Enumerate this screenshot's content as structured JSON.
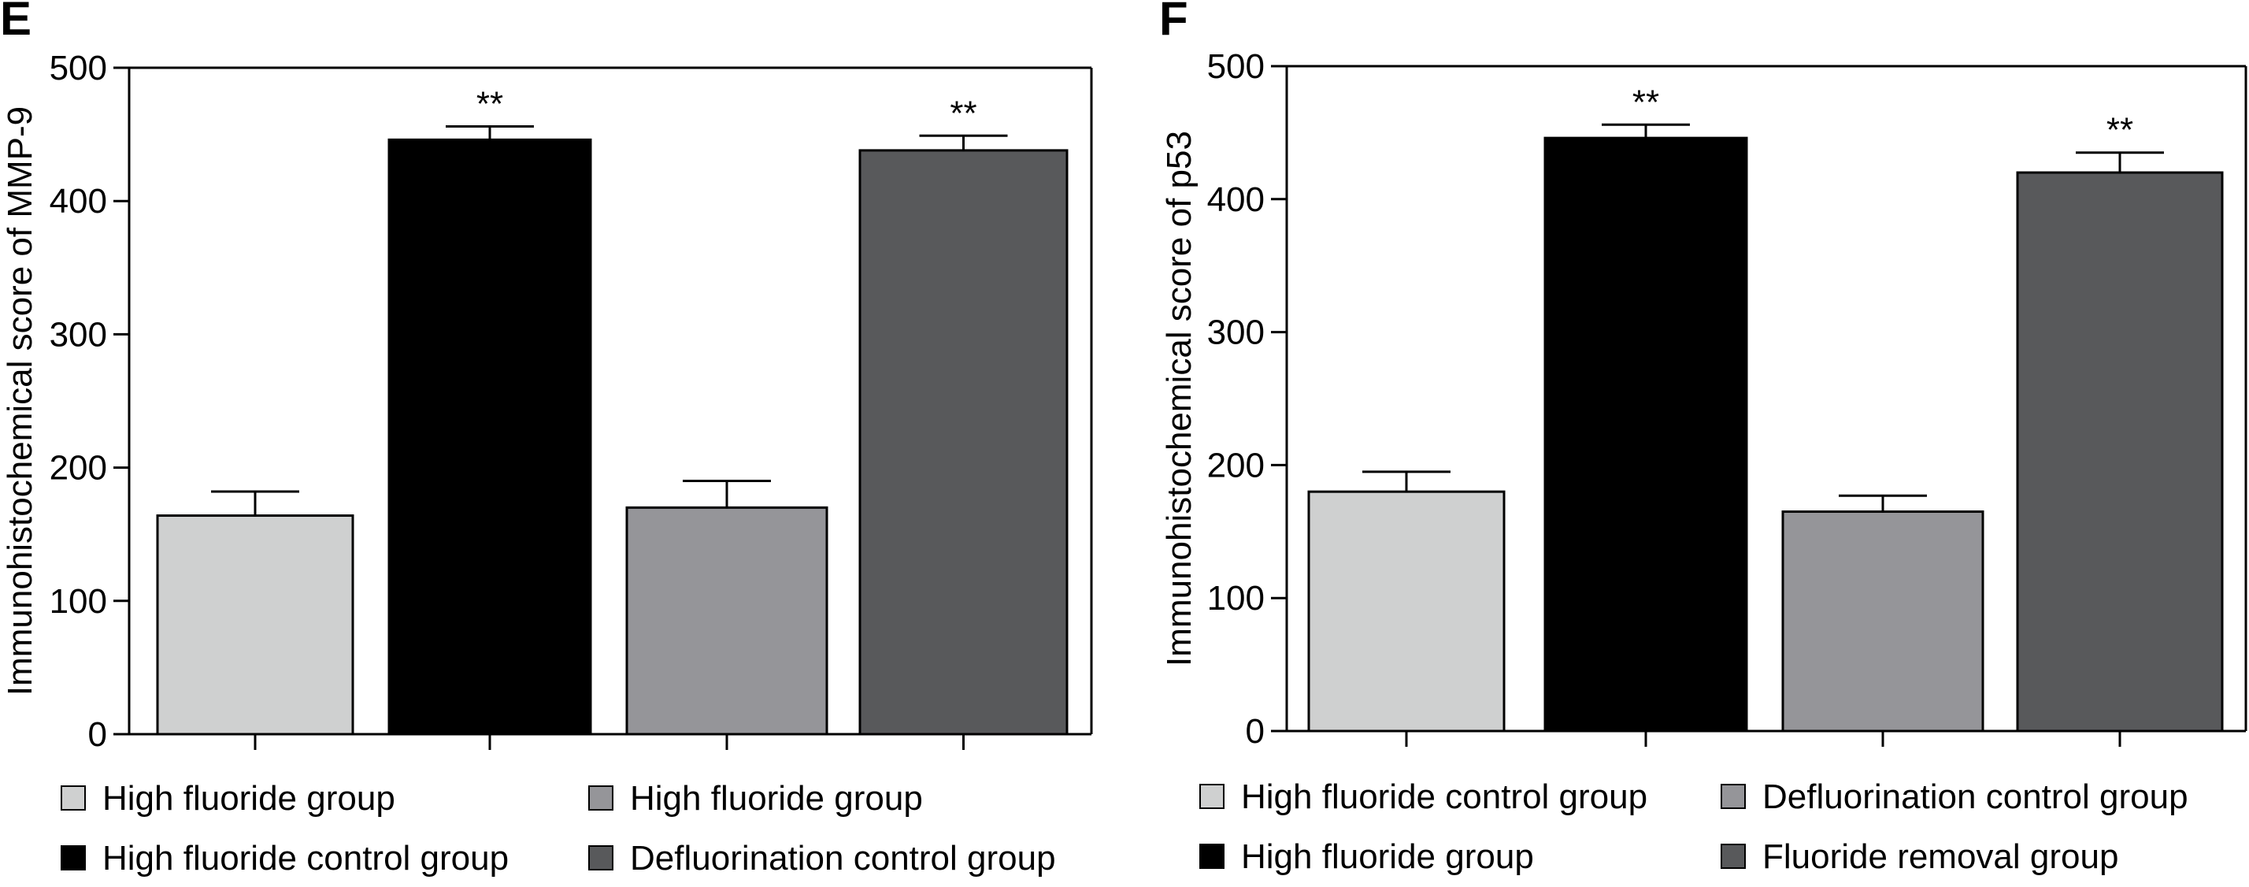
{
  "colors": {
    "light_gray": "#cfd0d0",
    "black": "#000000",
    "mid_gray": "#959599",
    "dark_gray": "#58595b"
  },
  "chart_data": [
    {
      "type": "bar",
      "panel": "E",
      "ylabel": "Immunohistochemical score of MMP-9",
      "ylim": [
        0,
        500
      ],
      "yticks": [
        "0",
        "100",
        "200",
        "300",
        "400",
        "500"
      ],
      "bars": [
        {
          "value": 164,
          "error": 18,
          "color": "light_gray",
          "annotation": ""
        },
        {
          "value": 446,
          "error": 10,
          "color": "black",
          "annotation": "**"
        },
        {
          "value": 170,
          "error": 20,
          "color": "mid_gray",
          "annotation": ""
        },
        {
          "value": 438,
          "error": 11,
          "color": "dark_gray",
          "annotation": "**"
        }
      ],
      "legend": [
        {
          "label": "High fluoride group",
          "color": "light_gray"
        },
        {
          "label": "High fluoride group",
          "color": "mid_gray"
        },
        {
          "label": "High fluoride control group",
          "color": "black"
        },
        {
          "label": "Defluorination control group",
          "color": "dark_gray"
        }
      ]
    },
    {
      "type": "bar",
      "panel": "F",
      "ylabel": "Immunohistochemical score of p53",
      "ylim": [
        0,
        500
      ],
      "yticks": [
        "0",
        "100",
        "200",
        "300",
        "400",
        "500"
      ],
      "bars": [
        {
          "value": 180,
          "error": 15,
          "color": "light_gray",
          "annotation": ""
        },
        {
          "value": 446,
          "error": 10,
          "color": "black",
          "annotation": "**"
        },
        {
          "value": 165,
          "error": 12,
          "color": "mid_gray",
          "annotation": ""
        },
        {
          "value": 420,
          "error": 15,
          "color": "dark_gray",
          "annotation": "**"
        }
      ],
      "legend": [
        {
          "label": "High fluoride control group",
          "color": "light_gray"
        },
        {
          "label": "Defluorination control group",
          "color": "mid_gray"
        },
        {
          "label": "High fluoride group",
          "color": "black"
        },
        {
          "label": "Fluoride removal group",
          "color": "dark_gray"
        }
      ]
    }
  ]
}
